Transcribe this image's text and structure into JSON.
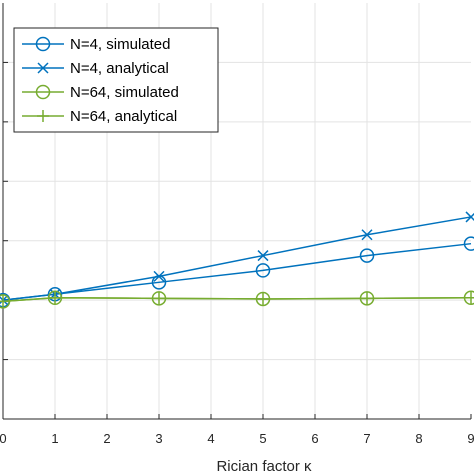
{
  "chart_data": {
    "type": "line",
    "xlabel": "Rician factor κ",
    "ylabel": "",
    "title": "",
    "x": [
      0,
      1,
      3,
      5,
      7,
      9
    ],
    "xlim": [
      0,
      9
    ],
    "ylim": [
      0,
      7
    ],
    "x_ticks": [
      "0",
      "1",
      "2",
      "3",
      "4",
      "5",
      "6",
      "7",
      "8",
      "9"
    ],
    "grid": true,
    "legend_position": "top-left",
    "series": [
      {
        "name": "N=4, simulated",
        "color": "#0072BD",
        "marker": "circle",
        "values": [
          2.0,
          2.1,
          2.3,
          2.5,
          2.75,
          2.95
        ]
      },
      {
        "name": "N=4, analytical",
        "color": "#0072BD",
        "marker": "x",
        "values": [
          2.0,
          2.1,
          2.4,
          2.75,
          3.1,
          3.4
        ]
      },
      {
        "name": "N=64, simulated",
        "color": "#77AC30",
        "marker": "circle",
        "values": [
          1.98,
          2.04,
          2.03,
          2.02,
          2.03,
          2.04
        ]
      },
      {
        "name": "N=64, analytical",
        "color": "#77AC30",
        "marker": "plus",
        "values": [
          1.98,
          2.04,
          2.03,
          2.02,
          2.03,
          2.04
        ]
      }
    ]
  }
}
